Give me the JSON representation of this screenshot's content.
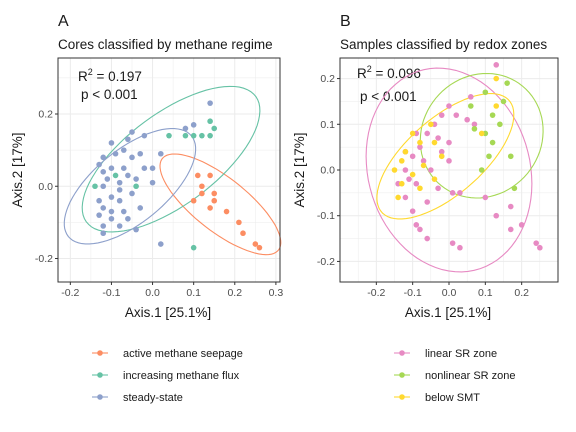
{
  "chart_data": [
    {
      "type": "scatter",
      "panel_label": "A",
      "title": "Cores classified by methane regime",
      "xlabel": "Axis.1   [25.1%]",
      "ylabel": "Axis.2   [17%]",
      "xlim": [
        -0.23,
        0.31
      ],
      "ylim": [
        -0.265,
        0.355
      ],
      "xticks": [
        -0.2,
        -0.1,
        0.0,
        0.1,
        0.2,
        0.3
      ],
      "xtick_labels": [
        "-0.2",
        "-0.1",
        "0.0",
        "0.1",
        "0.2",
        "0.3"
      ],
      "yticks": [
        -0.2,
        0.0,
        0.2
      ],
      "ytick_labels": [
        "-0.2",
        "0.0",
        "0.2"
      ],
      "grid": true,
      "legend_position": "bottom",
      "annotation": {
        "r2_prefix": "R",
        "r2_sup": "2",
        "r2_value": " = 0.197",
        "p_text": "p < 0.001"
      },
      "series": [
        {
          "name": "active methane seepage",
          "color": "#fc8d62",
          "points": [
            [
              0.1,
              -0.04
            ],
            [
              0.12,
              -0.02
            ],
            [
              0.12,
              0.0
            ],
            [
              0.11,
              0.03
            ],
            [
              0.14,
              0.03
            ],
            [
              0.15,
              -0.02
            ],
            [
              0.15,
              -0.04
            ],
            [
              0.18,
              -0.07
            ],
            [
              0.21,
              -0.1
            ],
            [
              0.22,
              -0.13
            ],
            [
              0.25,
              -0.16
            ],
            [
              0.26,
              -0.17
            ],
            [
              0.14,
              -0.06
            ]
          ],
          "ellipse": {
            "cx": 0.165,
            "cy": -0.05,
            "rx": 0.19,
            "ry": 0.07,
            "angle_deg": -43
          }
        },
        {
          "name": "increasing methane flux",
          "color": "#66c2a5",
          "points": [
            [
              0.04,
              0.14
            ],
            [
              0.08,
              0.14
            ],
            [
              0.12,
              0.14
            ],
            [
              0.14,
              0.14
            ],
            [
              0.15,
              0.16
            ],
            [
              0.14,
              0.18
            ],
            [
              0.1,
              0.14
            ],
            [
              0.1,
              -0.17
            ],
            [
              -0.04,
              0.0
            ],
            [
              -0.14,
              0.0
            ],
            [
              -0.09,
              0.03
            ]
          ],
          "ellipse": {
            "cx": 0.045,
            "cy": 0.075,
            "rx": 0.27,
            "ry": 0.12,
            "angle_deg": 42
          }
        },
        {
          "name": "steady-state",
          "color": "#8da0cb",
          "points": [
            [
              0.14,
              0.23
            ],
            [
              0.1,
              0.17
            ],
            [
              0.08,
              0.16
            ],
            [
              -0.05,
              0.15
            ],
            [
              -0.02,
              0.14
            ],
            [
              -0.06,
              0.13
            ],
            [
              -0.1,
              0.12
            ],
            [
              -0.07,
              0.1
            ],
            [
              -0.09,
              0.09
            ],
            [
              -0.03,
              0.09
            ],
            [
              0.02,
              0.09
            ],
            [
              -0.12,
              0.08
            ],
            [
              -0.05,
              0.08
            ],
            [
              -0.13,
              0.06
            ],
            [
              -0.07,
              0.05
            ],
            [
              -0.1,
              0.05
            ],
            [
              -0.02,
              0.05
            ],
            [
              0.0,
              0.05
            ],
            [
              -0.12,
              0.04
            ],
            [
              -0.06,
              0.03
            ],
            [
              -0.11,
              0.02
            ],
            [
              -0.08,
              0.01
            ],
            [
              -0.04,
              0.02
            ],
            [
              0.0,
              0.01
            ],
            [
              -0.12,
              0.0
            ],
            [
              -0.08,
              -0.01
            ],
            [
              -0.05,
              -0.02
            ],
            [
              -0.1,
              -0.03
            ],
            [
              -0.13,
              -0.04
            ],
            [
              -0.08,
              -0.04
            ],
            [
              -0.12,
              -0.06
            ],
            [
              -0.1,
              -0.07
            ],
            [
              -0.07,
              -0.07
            ],
            [
              -0.03,
              -0.06
            ],
            [
              -0.13,
              -0.08
            ],
            [
              -0.1,
              -0.09
            ],
            [
              -0.06,
              -0.09
            ],
            [
              -0.12,
              -0.11
            ],
            [
              -0.08,
              -0.11
            ],
            [
              -0.04,
              -0.12
            ],
            [
              -0.12,
              -0.13
            ],
            [
              0.02,
              -0.16
            ]
          ],
          "ellipse": {
            "cx": -0.055,
            "cy": 0.0,
            "rx": 0.205,
            "ry": 0.095,
            "angle_deg": 45
          }
        }
      ]
    },
    {
      "type": "scatter",
      "panel_label": "B",
      "title": "Samples classified by redox zones",
      "xlabel": "Axis.1   [25.1%]",
      "ylabel": "Axis.2   [17%]",
      "xlim": [
        -0.3,
        0.3
      ],
      "ylim": [
        -0.245,
        0.245
      ],
      "xticks": [
        -0.2,
        -0.1,
        0.0,
        0.1,
        0.2
      ],
      "xtick_labels": [
        "-0.2",
        "-0.1",
        "0.0",
        "0.1",
        "0.2"
      ],
      "yticks": [
        -0.2,
        -0.1,
        0.0,
        0.1,
        0.2
      ],
      "ytick_labels": [
        "-0.2",
        "-0.1",
        "0.0",
        "0.1",
        "0.2"
      ],
      "grid": true,
      "legend_position": "bottom",
      "annotation": {
        "r2_prefix": "R",
        "r2_sup": "2",
        "r2_value": " = 0.096",
        "p_text": "p < 0.001"
      },
      "series": [
        {
          "name": "linear SR zone",
          "color": "#e78ac3",
          "points": [
            [
              0.13,
              0.23
            ],
            [
              0.06,
              0.16
            ],
            [
              0.0,
              0.14
            ],
            [
              -0.02,
              0.12
            ],
            [
              0.02,
              0.12
            ],
            [
              0.05,
              0.11
            ],
            [
              0.07,
              0.1
            ],
            [
              -0.04,
              0.1
            ],
            [
              -0.09,
              0.08
            ],
            [
              -0.06,
              0.08
            ],
            [
              -0.03,
              0.07
            ],
            [
              0.0,
              0.06
            ],
            [
              -0.08,
              0.05
            ],
            [
              -0.02,
              0.04
            ],
            [
              -0.12,
              0.04
            ],
            [
              -0.1,
              0.03
            ],
            [
              -0.07,
              0.02
            ],
            [
              0.0,
              0.02
            ],
            [
              -0.12,
              0.0
            ],
            [
              -0.05,
              0.0
            ],
            [
              -0.11,
              -0.02
            ],
            [
              -0.14,
              -0.03
            ],
            [
              -0.09,
              -0.03
            ],
            [
              -0.03,
              -0.04
            ],
            [
              0.01,
              -0.05
            ],
            [
              -0.12,
              -0.06
            ],
            [
              -0.06,
              -0.07
            ],
            [
              0.03,
              -0.05
            ],
            [
              0.1,
              -0.06
            ],
            [
              0.17,
              -0.08
            ],
            [
              -0.1,
              -0.09
            ],
            [
              -0.08,
              -0.13
            ],
            [
              -0.09,
              -0.12
            ],
            [
              -0.06,
              -0.15
            ],
            [
              0.01,
              -0.16
            ],
            [
              0.03,
              -0.17
            ],
            [
              0.13,
              -0.1
            ],
            [
              0.17,
              -0.13
            ],
            [
              0.2,
              -0.12
            ],
            [
              0.24,
              -0.16
            ],
            [
              0.25,
              -0.17
            ]
          ],
          "ellipse": {
            "cx": 0.0,
            "cy": 0.0,
            "rx": 0.24,
            "ry": 0.21,
            "angle_deg": -40
          }
        },
        {
          "name": "nonlinear SR zone",
          "color": "#a6d854",
          "points": [
            [
              0.16,
              0.19
            ],
            [
              0.1,
              0.17
            ],
            [
              0.15,
              0.15
            ],
            [
              0.06,
              0.14
            ],
            [
              0.12,
              0.12
            ],
            [
              0.07,
              0.09
            ],
            [
              0.14,
              0.1
            ],
            [
              0.1,
              0.08
            ],
            [
              0.12,
              0.06
            ],
            [
              0.11,
              0.03
            ],
            [
              0.17,
              0.03
            ],
            [
              0.09,
              0.0
            ],
            [
              0.18,
              -0.04
            ]
          ],
          "ellipse": {
            "cx": 0.09,
            "cy": 0.075,
            "rx": 0.17,
            "ry": 0.135,
            "angle_deg": 10
          }
        },
        {
          "name": "below SMT",
          "color": "#ffd92f",
          "points": [
            [
              0.13,
              0.2
            ],
            [
              0.13,
              0.14
            ],
            [
              0.09,
              0.08
            ],
            [
              -0.05,
              0.1
            ],
            [
              -0.1,
              0.08
            ],
            [
              -0.08,
              0.06
            ],
            [
              -0.04,
              0.06
            ],
            [
              -0.12,
              0.04
            ],
            [
              -0.02,
              0.03
            ],
            [
              -0.13,
              0.02
            ],
            [
              -0.07,
              0.01
            ],
            [
              -0.15,
              0.0
            ],
            [
              -0.1,
              -0.01
            ],
            [
              -0.04,
              -0.02
            ],
            [
              -0.13,
              -0.03
            ],
            [
              -0.08,
              -0.04
            ],
            [
              -0.14,
              -0.06
            ]
          ],
          "ellipse": {
            "cx": -0.01,
            "cy": 0.03,
            "rx": 0.215,
            "ry": 0.09,
            "angle_deg": 32
          }
        }
      ]
    }
  ]
}
